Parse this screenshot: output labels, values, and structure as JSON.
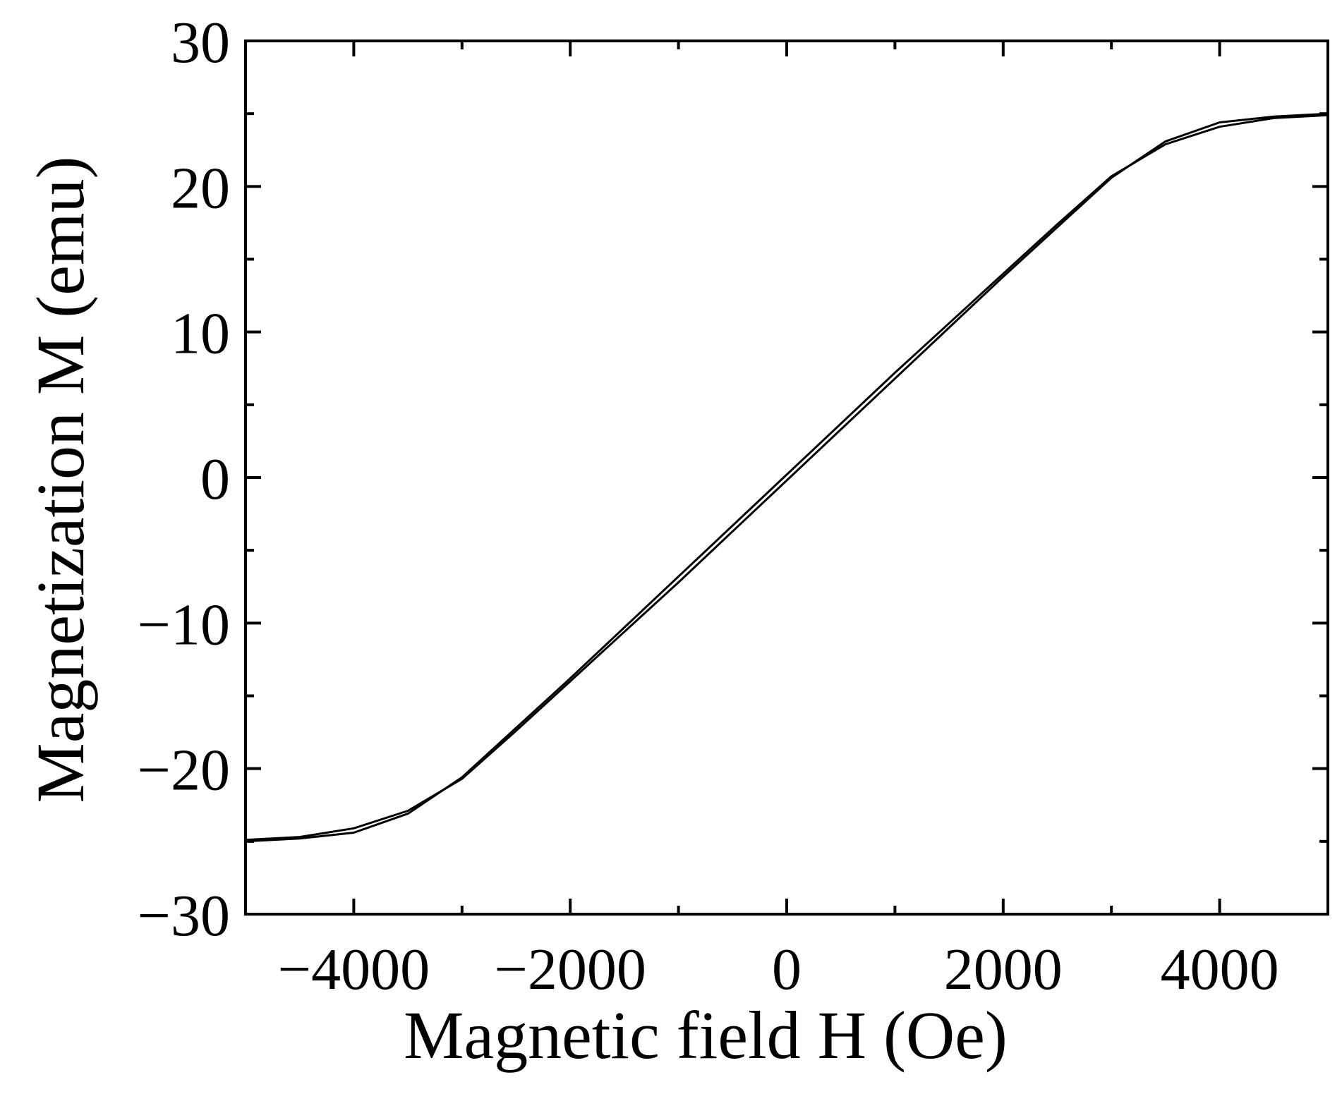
{
  "chart_data": {
    "type": "line",
    "title": "",
    "xlabel": "Magnetic field H (Oe)",
    "ylabel": "Magnetization M (emu)",
    "xlim": [
      -5000,
      5000
    ],
    "ylim": [
      -30,
      30
    ],
    "x_ticks": [
      -4000,
      -2000,
      0,
      2000,
      4000
    ],
    "x_tick_labels": [
      "−4000",
      "−2000",
      "0",
      "2000",
      "4000"
    ],
    "y_ticks": [
      -30,
      -20,
      -10,
      0,
      10,
      20,
      30
    ],
    "y_tick_labels": [
      "−30",
      "−20",
      "−10",
      "0",
      "10",
      "20",
      "30"
    ],
    "grid": false,
    "legend": "none",
    "series": [
      {
        "x": [
          -5000,
          -4500,
          -4000,
          -3500,
          -3000,
          -2500,
          -2000,
          -1500,
          -1000,
          -500,
          0,
          500,
          1000,
          1500,
          2000,
          2500,
          3000,
          3500,
          4000,
          4500,
          5000
        ],
        "y": [
          -24.9,
          -24.7,
          -24.1,
          -22.9,
          -20.7,
          -17.4,
          -14.0,
          -10.6,
          -7.2,
          -3.7,
          -0.2,
          3.3,
          6.8,
          10.3,
          13.8,
          17.2,
          20.6,
          23.1,
          24.4,
          24.8,
          25.0
        ]
      },
      {
        "x": [
          -5000,
          -4500,
          -4000,
          -3500,
          -3000,
          -2500,
          -2000,
          -1500,
          -1000,
          -500,
          0,
          500,
          1000,
          1500,
          2000,
          2500,
          3000,
          3500,
          4000,
          4500,
          5000
        ],
        "y": [
          -25.0,
          -24.8,
          -24.4,
          -23.1,
          -20.6,
          -17.2,
          -13.8,
          -10.3,
          -6.8,
          -3.3,
          0.2,
          3.7,
          7.2,
          10.6,
          14.0,
          17.4,
          20.7,
          22.9,
          24.1,
          24.7,
          24.9
        ]
      }
    ],
    "line_color": "#000000"
  }
}
